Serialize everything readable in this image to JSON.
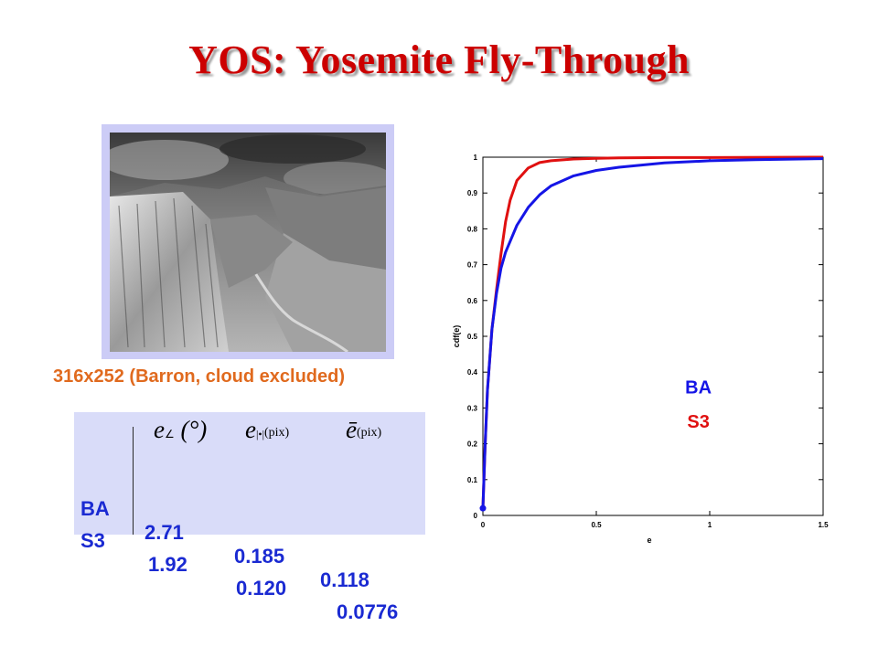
{
  "slide": {
    "title": "YOS: Yosemite Fly-Through",
    "image_caption": "316x252 (Barron, cloud excluded)"
  },
  "table": {
    "headers": [
      {
        "symbol": "e",
        "sub": "∠",
        "unit": "(°)"
      },
      {
        "symbol": "e",
        "sub": "|•|",
        "unit": "(pix)"
      },
      {
        "symbol": "ē",
        "sub": "",
        "unit": "(pix)"
      }
    ],
    "rows": [
      {
        "method": "BA",
        "values": [
          "2.71",
          "0.185",
          "0.118"
        ]
      },
      {
        "method": "S3",
        "values": [
          "1.92",
          "0.120",
          "0.0776"
        ]
      }
    ]
  },
  "colors": {
    "title": "#cc0000",
    "caption": "#e06a1e",
    "BA": "#1515e6",
    "S3": "#e01010",
    "table_bg": "#d9dcf9",
    "frame": "#ccccf6"
  },
  "chart_data": {
    "type": "line",
    "xlabel": "e",
    "ylabel": "cdf(e)",
    "xlim": [
      0,
      1.5
    ],
    "ylim": [
      0,
      1
    ],
    "xticks": [
      "0",
      "0.5",
      "1",
      "1.5"
    ],
    "yticks": [
      "0",
      "0.1",
      "0.2",
      "0.3",
      "0.4",
      "0.5",
      "0.6",
      "0.7",
      "0.8",
      "0.9",
      "1"
    ],
    "grid": false,
    "legend_position": "center-right",
    "series": [
      {
        "name": "BA",
        "x": [
          0,
          0.01,
          0.02,
          0.04,
          0.06,
          0.08,
          0.1,
          0.15,
          0.2,
          0.25,
          0.3,
          0.4,
          0.5,
          0.6,
          0.8,
          1.0,
          1.2,
          1.5
        ],
        "y": [
          0.02,
          0.2,
          0.35,
          0.52,
          0.62,
          0.69,
          0.735,
          0.81,
          0.86,
          0.895,
          0.92,
          0.948,
          0.963,
          0.972,
          0.984,
          0.99,
          0.993,
          0.996
        ]
      },
      {
        "name": "S3",
        "x": [
          0,
          0.01,
          0.02,
          0.04,
          0.06,
          0.08,
          0.1,
          0.12,
          0.15,
          0.2,
          0.25,
          0.3,
          0.4,
          0.5,
          0.6,
          0.8,
          1.0,
          1.5
        ],
        "y": [
          0.02,
          0.2,
          0.35,
          0.52,
          0.63,
          0.73,
          0.82,
          0.88,
          0.935,
          0.97,
          0.985,
          0.99,
          0.995,
          0.997,
          0.998,
          0.999,
          0.999,
          1.0
        ]
      }
    ]
  }
}
